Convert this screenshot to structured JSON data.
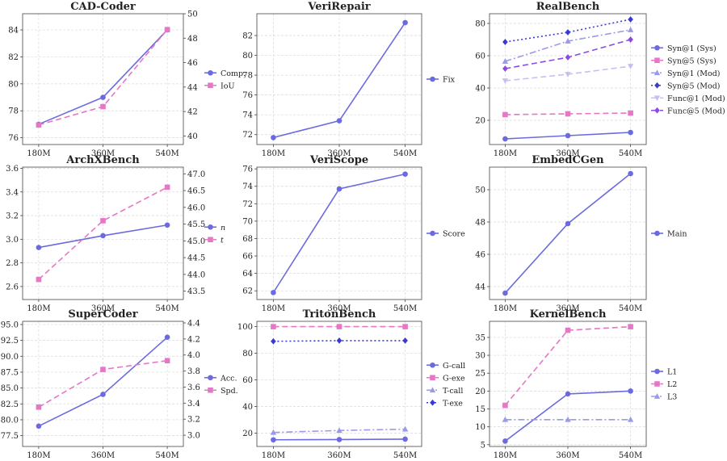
{
  "figure": {
    "colors": {
      "blue": "#6b6bdf",
      "pink": "#e577c6",
      "lavender": "#9b9ae8",
      "navy": "#3a3ad0",
      "lilac": "#c4c0f4",
      "purple": "#8a4ce0",
      "grid": "#d9d9d9"
    }
  },
  "chart_data": [
    {
      "type": "line",
      "title": "CAD-Coder",
      "categories": [
        "180M",
        "360M",
        "540M"
      ],
      "ylim": [
        75.5,
        85.2
      ],
      "yticks": [
        76,
        78,
        80,
        82,
        84
      ],
      "y2lim": [
        39.3,
        50.0
      ],
      "y2ticks": [
        40,
        42,
        44,
        46,
        48,
        50
      ],
      "series": [
        {
          "name": "Comp.",
          "values": [
            77.0,
            79.0,
            84.0
          ],
          "axis": "left",
          "color": "blue",
          "dash": "solid",
          "marker": "circle"
        },
        {
          "name": "IoU",
          "values": [
            40.9,
            42.4,
            48.7
          ],
          "axis": "right",
          "color": "pink",
          "dash": "dashed",
          "marker": "square"
        }
      ],
      "grid": true,
      "legend": "right"
    },
    {
      "type": "line",
      "title": "VeriRepair",
      "categories": [
        "180M",
        "360M",
        "540M"
      ],
      "ylim": [
        71.0,
        84.2
      ],
      "yticks": [
        72,
        74,
        76,
        78,
        80,
        82
      ],
      "series": [
        {
          "name": "Fix",
          "values": [
            71.7,
            73.4,
            83.3
          ],
          "axis": "left",
          "color": "blue",
          "dash": "solid",
          "marker": "circle"
        }
      ],
      "grid": true,
      "legend": "right"
    },
    {
      "type": "line",
      "title": "RealBench",
      "categories": [
        "180M",
        "360M",
        "540M"
      ],
      "ylim": [
        5,
        86
      ],
      "yticks": [
        20,
        40,
        60,
        80
      ],
      "series": [
        {
          "name": "Syn@1 (Sys)",
          "values": [
            8.5,
            10.5,
            12.5
          ],
          "axis": "left",
          "color": "blue",
          "dash": "solid",
          "marker": "circle"
        },
        {
          "name": "Syn@5 (Sys)",
          "values": [
            23.5,
            24.0,
            24.5
          ],
          "axis": "left",
          "color": "pink",
          "dash": "dashed",
          "marker": "square"
        },
        {
          "name": "Syn@1 (Mod)",
          "values": [
            56.5,
            69.0,
            76.0
          ],
          "axis": "left",
          "color": "lavender",
          "dash": "dashdot",
          "marker": "triangle"
        },
        {
          "name": "Syn@5 (Mod)",
          "values": [
            68.5,
            74.5,
            82.5
          ],
          "axis": "left",
          "color": "navy",
          "dash": "dotted",
          "marker": "diamond"
        },
        {
          "name": "Func@1 (Mod)",
          "values": [
            44.5,
            48.5,
            53.5
          ],
          "axis": "left",
          "color": "lilac",
          "dash": "dashed",
          "marker": "tridown"
        },
        {
          "name": "Func@5 (Mod)",
          "values": [
            52.0,
            59.0,
            70.0
          ],
          "axis": "left",
          "color": "purple",
          "dash": "dashed",
          "marker": "diamond"
        }
      ],
      "grid": true,
      "legend": "right"
    },
    {
      "type": "line",
      "title": "ArchXBench",
      "categories": [
        "180M",
        "360M",
        "540M"
      ],
      "ylim": [
        2.49,
        3.61
      ],
      "yticks": [
        2.6,
        2.8,
        3.0,
        3.2,
        3.4,
        3.6
      ],
      "y2lim": [
        43.25,
        47.2
      ],
      "y2ticks": [
        43.5,
        44.0,
        44.5,
        45.0,
        45.5,
        46.0,
        46.5,
        47.0
      ],
      "series": [
        {
          "name": "n",
          "values": [
            2.93,
            3.03,
            3.12
          ],
          "axis": "left",
          "color": "blue",
          "dash": "solid",
          "marker": "circle",
          "italic": true
        },
        {
          "name": "t",
          "values": [
            43.85,
            45.6,
            46.6
          ],
          "axis": "right",
          "color": "pink",
          "dash": "dashed",
          "marker": "square",
          "italic": true
        }
      ],
      "grid": true,
      "legend": "right"
    },
    {
      "type": "line",
      "title": "VeriScope",
      "categories": [
        "180M",
        "360M",
        "540M"
      ],
      "ylim": [
        61.0,
        76.2
      ],
      "yticks": [
        62,
        64,
        66,
        68,
        70,
        72,
        74,
        76
      ],
      "series": [
        {
          "name": "Score",
          "values": [
            61.8,
            73.7,
            75.4
          ],
          "axis": "left",
          "color": "blue",
          "dash": "solid",
          "marker": "circle"
        }
      ],
      "grid": true,
      "legend": "right"
    },
    {
      "type": "line",
      "title": "EmbedCGen",
      "categories": [
        "180M",
        "360M",
        "540M"
      ],
      "ylim": [
        43.2,
        51.4
      ],
      "yticks": [
        44,
        46,
        48,
        50
      ],
      "series": [
        {
          "name": "Main",
          "values": [
            43.6,
            47.9,
            51.0
          ],
          "axis": "left",
          "color": "blue",
          "dash": "solid",
          "marker": "circle"
        }
      ],
      "grid": true,
      "legend": "right"
    },
    {
      "type": "line",
      "title": "SuperCoder",
      "categories": [
        "180M",
        "360M",
        "540M"
      ],
      "ylim": [
        75.8,
        95.5
      ],
      "yticks": [
        77.5,
        80.0,
        82.5,
        85.0,
        87.5,
        90.0,
        92.5,
        95.0
      ],
      "y2lim": [
        2.86,
        4.42
      ],
      "y2ticks": [
        3.0,
        3.2,
        3.4,
        3.6,
        3.8,
        4.0,
        4.2,
        4.4
      ],
      "series": [
        {
          "name": "Acc.",
          "values": [
            79.0,
            84.0,
            93.0
          ],
          "axis": "left",
          "color": "blue",
          "dash": "solid",
          "marker": "circle"
        },
        {
          "name": "Spd.",
          "values": [
            3.35,
            3.82,
            3.93
          ],
          "axis": "right",
          "color": "pink",
          "dash": "dashed",
          "marker": "square"
        }
      ],
      "grid": true,
      "legend": "right"
    },
    {
      "type": "line",
      "title": "TritonBench",
      "categories": [
        "180M",
        "360M",
        "540M"
      ],
      "ylim": [
        10,
        104
      ],
      "yticks": [
        20,
        40,
        60,
        80,
        100
      ],
      "series": [
        {
          "name": "G-call",
          "values": [
            15.0,
            15.2,
            15.5
          ],
          "axis": "left",
          "color": "blue",
          "dash": "solid",
          "marker": "circle"
        },
        {
          "name": "G-exe",
          "values": [
            100.0,
            100.0,
            100.0
          ],
          "axis": "left",
          "color": "pink",
          "dash": "dashed",
          "marker": "square"
        },
        {
          "name": "T-call",
          "values": [
            20.5,
            22.0,
            23.0
          ],
          "axis": "left",
          "color": "lavender",
          "dash": "dashdot",
          "marker": "triangle"
        },
        {
          "name": "T-exe",
          "values": [
            89.0,
            89.5,
            89.5
          ],
          "axis": "left",
          "color": "navy",
          "dash": "dotted",
          "marker": "diamond"
        }
      ],
      "grid": true,
      "legend": "right"
    },
    {
      "type": "line",
      "title": "KernelBench",
      "categories": [
        "180M",
        "360M",
        "540M"
      ],
      "ylim": [
        4.5,
        39.5
      ],
      "yticks": [
        5,
        10,
        15,
        20,
        25,
        30,
        35
      ],
      "series": [
        {
          "name": "L1",
          "values": [
            6.0,
            19.2,
            20.0
          ],
          "axis": "left",
          "color": "blue",
          "dash": "solid",
          "marker": "circle"
        },
        {
          "name": "L2",
          "values": [
            16.0,
            37.0,
            38.0
          ],
          "axis": "left",
          "color": "pink",
          "dash": "dashed",
          "marker": "square"
        },
        {
          "name": "L3",
          "values": [
            12.0,
            12.0,
            12.0
          ],
          "axis": "left",
          "color": "lavender",
          "dash": "dashdot",
          "marker": "triangle"
        }
      ],
      "grid": true,
      "legend": "right"
    }
  ]
}
